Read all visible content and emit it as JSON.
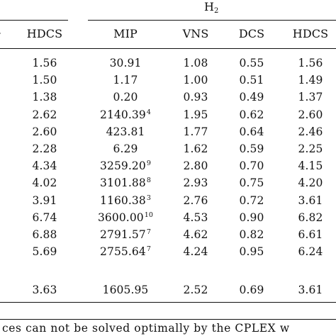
{
  "group_title": "H",
  "group_title_sub": "2",
  "footnote_fragment": "ces can not be solved optimally by the CPLEX w",
  "columns": [
    "HDCS",
    "MIP",
    "VNS",
    "DCS",
    "HDCS"
  ],
  "rows": [
    {
      "c0": "1.56",
      "c1": "30.91",
      "c1sup": "",
      "c2": "1.08",
      "c3": "0.55",
      "c4": "1.56"
    },
    {
      "c0": "1.50",
      "c1": "1.17",
      "c1sup": "",
      "c2": "1.00",
      "c3": "0.51",
      "c4": "1.49"
    },
    {
      "c0": "1.38",
      "c1": "0.20",
      "c1sup": "",
      "c2": "0.93",
      "c3": "0.49",
      "c4": "1.37"
    },
    {
      "c0": "2.62",
      "c1": "2140.39",
      "c1sup": "4",
      "c2": "1.95",
      "c3": "0.62",
      "c4": "2.60"
    },
    {
      "c0": "2.60",
      "c1": "423.81",
      "c1sup": "",
      "c2": "1.77",
      "c3": "0.64",
      "c4": "2.46"
    },
    {
      "c0": "2.28",
      "c1": "6.29",
      "c1sup": "",
      "c2": "1.62",
      "c3": "0.59",
      "c4": "2.25"
    },
    {
      "c0": "4.34",
      "c1": "3259.20",
      "c1sup": "9",
      "c2": "2.80",
      "c3": "0.70",
      "c4": "4.15"
    },
    {
      "c0": "4.02",
      "c1": "3101.88",
      "c1sup": "8",
      "c2": "2.93",
      "c3": "0.75",
      "c4": "4.20"
    },
    {
      "c0": "3.91",
      "c1": "1160.38",
      "c1sup": "3",
      "c2": "2.76",
      "c3": "0.72",
      "c4": "3.61"
    },
    {
      "c0": "6.74",
      "c1": "3600.00",
      "c1sup": "10",
      "c2": "4.53",
      "c3": "0.90",
      "c4": "6.82"
    },
    {
      "c0": "6.88",
      "c1": "2791.57",
      "c1sup": "7",
      "c2": "4.62",
      "c3": "0.82",
      "c4": "6.61"
    },
    {
      "c0": "5.69",
      "c1": "2755.64",
      "c1sup": "7",
      "c2": "4.24",
      "c3": "0.95",
      "c4": "6.24"
    }
  ],
  "summary": {
    "c0": "3.63",
    "c1": "1605.95",
    "c2": "2.52",
    "c3": "0.69",
    "c4": "3.61"
  }
}
